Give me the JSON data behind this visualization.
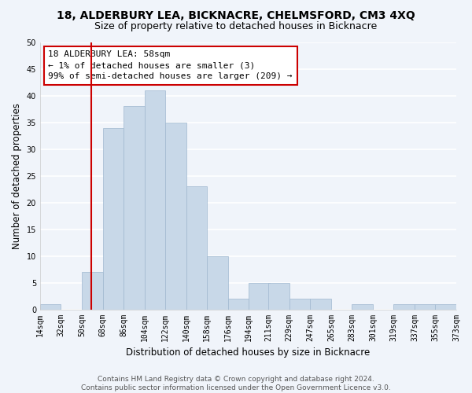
{
  "title": "18, ALDERBURY LEA, BICKNACRE, CHELMSFORD, CM3 4XQ",
  "subtitle": "Size of property relative to detached houses in Bicknacre",
  "xlabel": "Distribution of detached houses by size in Bicknacre",
  "ylabel": "Number of detached properties",
  "bin_edges": [
    14,
    32,
    50,
    68,
    86,
    104,
    122,
    140,
    158,
    176,
    194,
    211,
    229,
    247,
    265,
    283,
    301,
    319,
    337,
    355,
    373
  ],
  "counts": [
    1,
    0,
    7,
    34,
    38,
    41,
    35,
    23,
    10,
    2,
    5,
    5,
    2,
    2,
    0,
    1,
    0,
    1,
    1,
    1
  ],
  "bar_color": "#c8d8e8",
  "bar_edge_color": "#a0b8d0",
  "property_line_x": 58,
  "property_line_color": "#cc0000",
  "ylim": [
    0,
    50
  ],
  "yticks": [
    0,
    5,
    10,
    15,
    20,
    25,
    30,
    35,
    40,
    45,
    50
  ],
  "annotation_title": "18 ALDERBURY LEA: 58sqm",
  "annotation_line1": "← 1% of detached houses are smaller (3)",
  "annotation_line2": "99% of semi-detached houses are larger (209) →",
  "annotation_box_color": "#ffffff",
  "annotation_box_edgecolor": "#cc0000",
  "tick_labels": [
    "14sqm",
    "32sqm",
    "50sqm",
    "68sqm",
    "86sqm",
    "104sqm",
    "122sqm",
    "140sqm",
    "158sqm",
    "176sqm",
    "194sqm",
    "211sqm",
    "229sqm",
    "247sqm",
    "265sqm",
    "283sqm",
    "301sqm",
    "319sqm",
    "337sqm",
    "355sqm",
    "373sqm"
  ],
  "footer_line1": "Contains HM Land Registry data © Crown copyright and database right 2024.",
  "footer_line2": "Contains public sector information licensed under the Open Government Licence v3.0.",
  "background_color": "#f0f4fa",
  "grid_color": "#ffffff",
  "title_fontsize": 10,
  "subtitle_fontsize": 9,
  "axis_label_fontsize": 8.5,
  "tick_fontsize": 7,
  "annotation_fontsize": 8,
  "footer_fontsize": 6.5
}
